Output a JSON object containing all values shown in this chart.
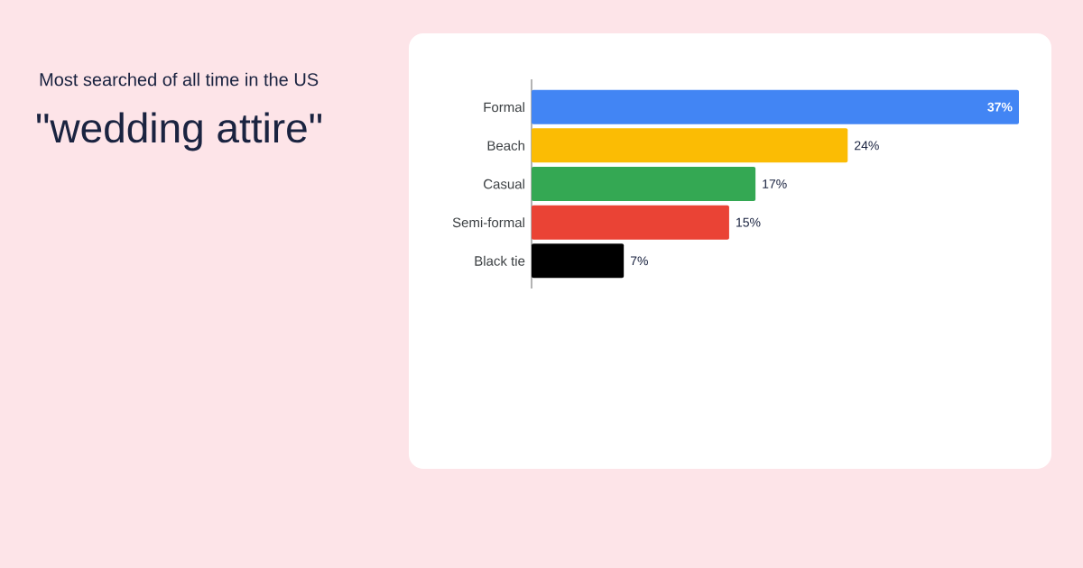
{
  "chart_data": {
    "type": "bar",
    "orientation": "horizontal",
    "title": "Most searched of all time in the US",
    "subtitle": "\"wedding attire\"",
    "categories": [
      "Formal",
      "Beach",
      "Casual",
      "Semi-formal",
      "Black tie"
    ],
    "values": [
      37,
      24,
      17,
      15,
      7
    ],
    "colors": [
      "#4285f4",
      "#fbbc04",
      "#34a853",
      "#ea4335",
      "#000000"
    ],
    "data_labels": true,
    "value_labels": [
      "37%",
      "24%",
      "17%",
      "15%",
      "7%"
    ]
  }
}
